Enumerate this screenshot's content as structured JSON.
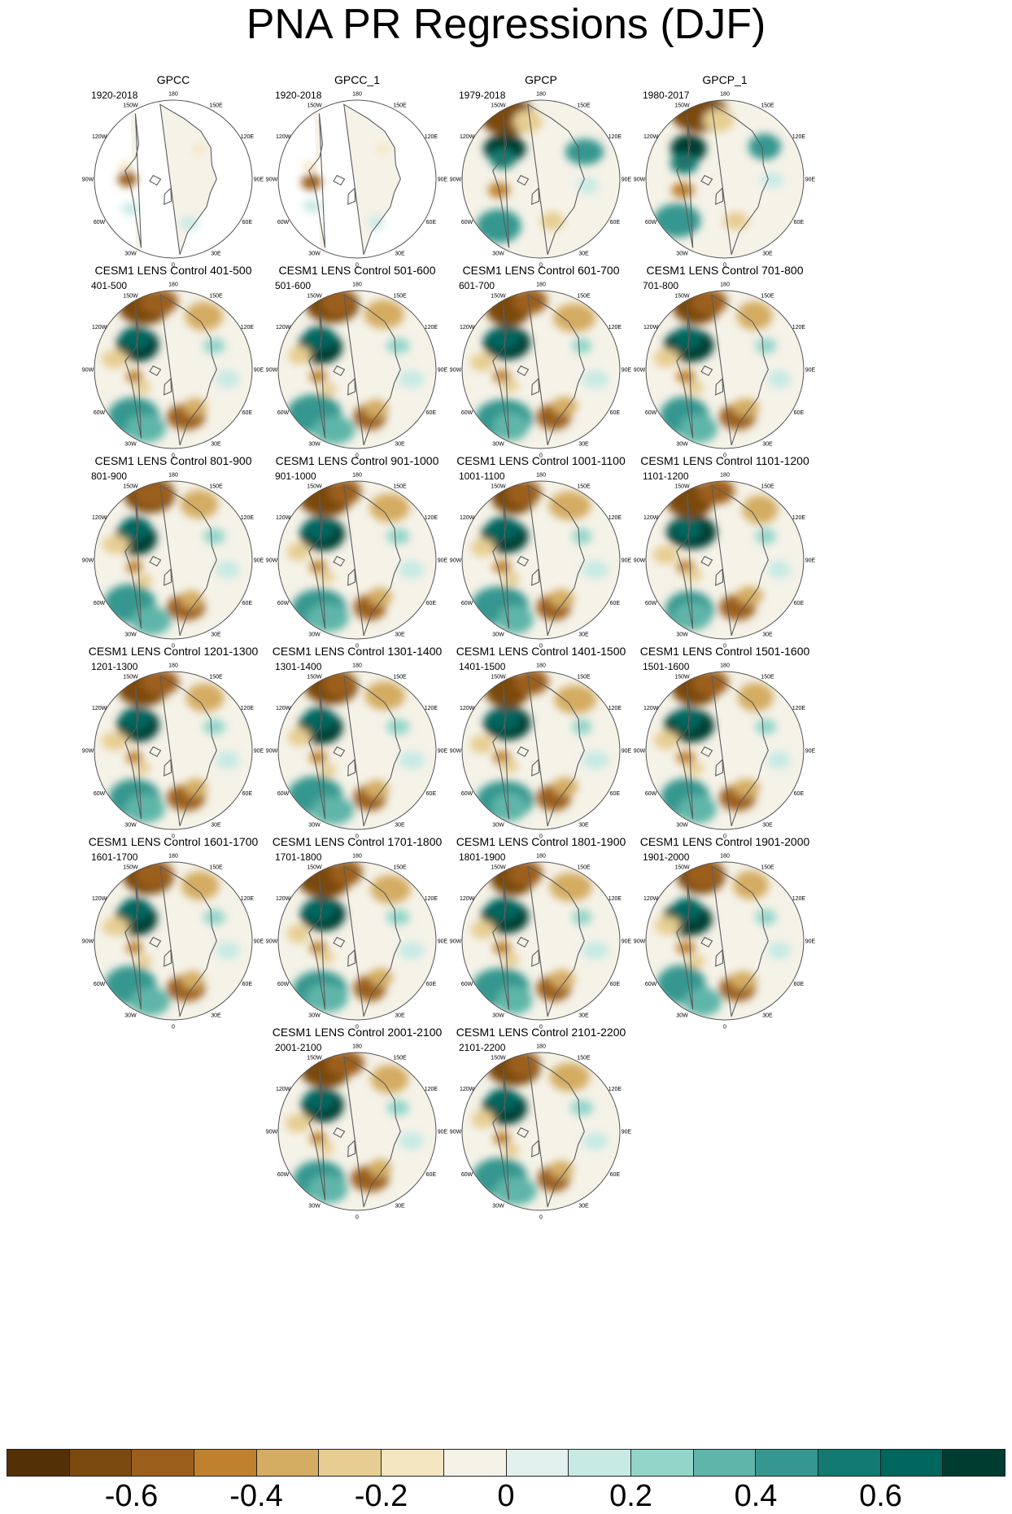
{
  "title": "PNA PR Regressions (DJF)",
  "longitude_labels": [
    "180",
    "150E",
    "120E",
    "90E",
    "60E",
    "30E",
    "0",
    "30W",
    "60W",
    "90W",
    "120W",
    "150W"
  ],
  "panels": [
    {
      "title": "GPCC",
      "period": "1920-2018",
      "coverage": "land"
    },
    {
      "title": "GPCC_1",
      "period": "1920-2018",
      "coverage": "land"
    },
    {
      "title": "GPCP",
      "period": "1979-2018",
      "coverage": "full"
    },
    {
      "title": "GPCP_1",
      "period": "1980-2017",
      "coverage": "full"
    },
    {
      "title": "CESM1 LENS Control 401-500",
      "period": "401-500",
      "coverage": "full"
    },
    {
      "title": "CESM1 LENS Control 501-600",
      "period": "501-600",
      "coverage": "full"
    },
    {
      "title": "CESM1 LENS Control 601-700",
      "period": "601-700",
      "coverage": "full"
    },
    {
      "title": "CESM1 LENS Control 701-800",
      "period": "701-800",
      "coverage": "full"
    },
    {
      "title": "CESM1 LENS Control 801-900",
      "period": "801-900",
      "coverage": "full"
    },
    {
      "title": "CESM1 LENS Control 901-1000",
      "period": "901-1000",
      "coverage": "full"
    },
    {
      "title": "CESM1 LENS Control 1001-1100",
      "period": "1001-1100",
      "coverage": "full"
    },
    {
      "title": "CESM1 LENS Control 1101-1200",
      "period": "1101-1200",
      "coverage": "full"
    },
    {
      "title": "CESM1 LENS Control 1201-1300",
      "period": "1201-1300",
      "coverage": "full"
    },
    {
      "title": "CESM1 LENS Control 1301-1400",
      "period": "1301-1400",
      "coverage": "full"
    },
    {
      "title": "CESM1 LENS Control 1401-1500",
      "period": "1401-1500",
      "coverage": "full"
    },
    {
      "title": "CESM1 LENS Control 1501-1600",
      "period": "1501-1600",
      "coverage": "full"
    },
    {
      "title": "CESM1 LENS Control 1601-1700",
      "period": "1601-1700",
      "coverage": "full"
    },
    {
      "title": "CESM1 LENS Control 1701-1800",
      "period": "1701-1800",
      "coverage": "full"
    },
    {
      "title": "CESM1 LENS Control 1801-1900",
      "period": "1801-1900",
      "coverage": "full"
    },
    {
      "title": "CESM1 LENS Control 1901-2000",
      "period": "1901-2000",
      "coverage": "full"
    },
    {
      "title": "CESM1 LENS Control 2001-2100",
      "period": "2001-2100",
      "coverage": "full"
    },
    {
      "title": "CESM1 LENS Control 2101-2200",
      "period": "2101-2200",
      "coverage": "full"
    }
  ],
  "colorbar": {
    "colors": [
      "#543005",
      "#7a4a0f",
      "#9c5f1b",
      "#bf812d",
      "#d4ac62",
      "#e7cd91",
      "#f5e6c2",
      "#f5f2e8",
      "#e3f1ee",
      "#c7eae5",
      "#93d5c9",
      "#5fb5a9",
      "#35978f",
      "#127a70",
      "#01665e",
      "#003c30"
    ],
    "tick_labels": [
      "-0.6",
      "-0.4",
      "-0.2",
      "0",
      "0.2",
      "0.4",
      "0.6"
    ]
  },
  "colors": {
    "neutral": "#f5f2e8",
    "missing": "#ffffff",
    "coast": "#5b5b5b",
    "border": "#555555"
  }
}
